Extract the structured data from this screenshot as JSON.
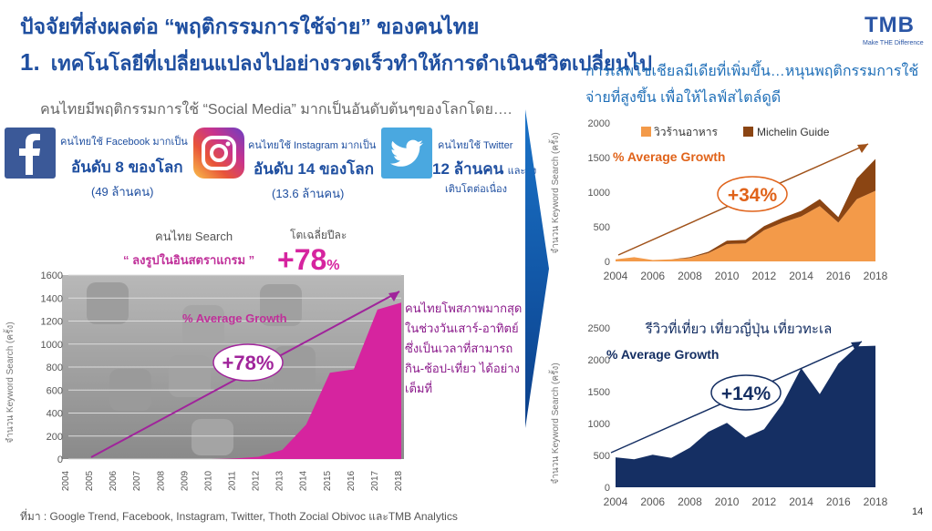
{
  "header": {
    "title": "ปัจจัยที่ส่งผลต่อ “พฤติกรรมการใช้จ่าย” ของคนไทย",
    "subtitle_num": "1.",
    "subtitle": "เทคโนโลยีที่เปลี่ยนแปลงไปอย่างรวดเร็วทำให้การดำเนินชีวิตเปลี่ยนไป"
  },
  "logo": {
    "text": "TMB",
    "tagline": "Make THE Difference"
  },
  "left": {
    "lead": "คนไทยมีพฤติกรรมการใช้ “Social Media” มากเป็นอันดับต้นๆของโลกโดย….",
    "facebook": {
      "icon": "facebook-icon",
      "line1": "คนไทยใช้ Facebook มากเป็น",
      "big": "อันดับ 8 ของโลก",
      "sub": "(49 ล้านคน)"
    },
    "instagram": {
      "icon": "instagram-icon",
      "line1": "คนไทยใช้ Instagram มากเป็น",
      "big": "อันดับ 14 ของโลก",
      "sub": "(13.6 ล้านคน)"
    },
    "twitter": {
      "icon": "twitter-icon",
      "line1": "คนไทยใช้ Twitter",
      "big": "12 ล้านคน",
      "big_suffix": "และยัง",
      "sub": "เติบโตต่อเนื่อง"
    },
    "search_label": "คนไทย Search",
    "search_term": "“ ลงรูปในอินสตราแกรม ”",
    "growth_label": "โตเฉลี่ยปีละ",
    "growth_value": "+78",
    "growth_unit": "%",
    "note_lines": [
      "คนไทยโพสภาพมากสุด",
      "ในช่วงวันเสาร์-อาทิตย์",
      "ซึ่งเป็นเวลาที่สามารถ",
      "กิน-ช้อป-เที่ยว ได้อย่าง",
      "เต็มที่"
    ],
    "source": "ที่มา : Google Trend, Facebook, Instagram, Twitter, Thoth Zocial Obivoc  และTMB Analytics"
  },
  "right": {
    "headline": "การเสพโซเชียลมีเดียที่เพิ่มขึ้น…หนุนพฤติกรรมการใช้จ่ายที่สูงขึ้น เพื่อให้ไลฟ์สไตล์ดูดี"
  },
  "page_number": "14",
  "colors": {
    "brand_blue": "#1f4fa0",
    "magenta": "#d6249f",
    "orange": "#f39a49",
    "brown": "#8b4513",
    "navy": "#152f63",
    "purple_text": "#8b1a8b"
  },
  "chart_data": [
    {
      "type": "area",
      "x": [
        "2004",
        "2005",
        "2006",
        "2007",
        "2008",
        "2009",
        "2010",
        "2011",
        "2012",
        "2013",
        "2014",
        "2015",
        "2016",
        "2017",
        "2018"
      ],
      "series": [
        {
          "values": [
            0,
            0,
            0,
            0,
            0,
            0,
            0,
            5,
            20,
            80,
            300,
            750,
            780,
            1300,
            1360
          ]
        }
      ],
      "ylabel": "จำนวน Keyword Search (ครั้ง)",
      "ylim": [
        0,
        1600
      ],
      "yticks": [
        0,
        200,
        400,
        600,
        800,
        1000,
        1200,
        1400,
        1600
      ],
      "annotation_label": "% Average Growth",
      "annotation_value": "+78%"
    },
    {
      "type": "area",
      "stacked": true,
      "x": [
        "2004",
        "2005",
        "2006",
        "2007",
        "2008",
        "2009",
        "2010",
        "2011",
        "2012",
        "2013",
        "2014",
        "2015",
        "2016",
        "2017",
        "2018"
      ],
      "series": [
        {
          "name": "วิวร้านอาหาร",
          "color": "#f39a49",
          "values": [
            30,
            60,
            20,
            30,
            50,
            120,
            250,
            260,
            450,
            560,
            650,
            800,
            560,
            900,
            1020
          ]
        },
        {
          "name": "Michelin Guide",
          "color": "#8b4513",
          "values": [
            0,
            0,
            0,
            0,
            10,
            20,
            50,
            50,
            60,
            70,
            80,
            100,
            80,
            300,
            460
          ]
        }
      ],
      "ylabel": "จำนวน Keyword Search (ครั้ง)",
      "ylim": [
        0,
        2000
      ],
      "yticks": [
        0,
        500,
        1000,
        1500,
        2000
      ],
      "xticks": [
        "2004",
        "2006",
        "2008",
        "2010",
        "2012",
        "2014",
        "2016",
        "2018"
      ],
      "legend": "top",
      "annotation_label": "% Average Growth",
      "annotation_value": "+34%"
    },
    {
      "type": "area",
      "x": [
        "2004",
        "2005",
        "2006",
        "2007",
        "2008",
        "2009",
        "2010",
        "2011",
        "2012",
        "2013",
        "2014",
        "2015",
        "2016",
        "2017",
        "2018"
      ],
      "series": [
        {
          "values": [
            470,
            440,
            510,
            460,
            620,
            870,
            1010,
            780,
            910,
            1310,
            1870,
            1460,
            1940,
            2210,
            2220
          ]
        }
      ],
      "title": "รีวิวที่เที่ยว เที่ยวญี่ปุ่น เที่ยวทะเล",
      "ylabel": "จำนวน Keyword Search (ครั้ง)",
      "ylim": [
        0,
        2500
      ],
      "yticks": [
        0,
        500,
        1000,
        1500,
        2000,
        2500
      ],
      "xticks": [
        "2004",
        "2006",
        "2008",
        "2010",
        "2012",
        "2014",
        "2016",
        "2018"
      ],
      "annotation_label": "% Average Growth",
      "annotation_value": "+14%"
    }
  ]
}
